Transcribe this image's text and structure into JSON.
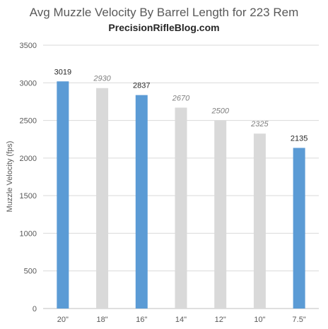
{
  "chart_data": {
    "type": "bar",
    "title": "Avg Muzzle Velocity By Barrel Length for 223 Rem",
    "subtitle": "PrecisionRifleBlog.com",
    "xlabel": "",
    "ylabel": "Muzzle Velocity (fps)",
    "categories": [
      "20\"",
      "18\"",
      "16\"",
      "14\"",
      "12\"",
      "10\"",
      "7.5\""
    ],
    "values": [
      3019,
      2930,
      2837,
      2670,
      2500,
      2325,
      2135
    ],
    "data_labels": [
      "3019",
      "2930",
      "2837",
      "2670",
      "2500",
      "2325",
      "2135"
    ],
    "label_style": [
      "normal",
      "italic",
      "normal",
      "italic",
      "italic",
      "italic",
      "normal"
    ],
    "bar_colors": [
      "#5b9bd5",
      "#d9d9d9",
      "#5b9bd5",
      "#d9d9d9",
      "#d9d9d9",
      "#d9d9d9",
      "#5b9bd5"
    ],
    "ylim": [
      0,
      3500
    ],
    "yticks": [
      0,
      500,
      1000,
      1500,
      2000,
      2500,
      3000,
      3500
    ],
    "grid": true,
    "gridline_color": "#d9d9d9",
    "label_colors": {
      "normal": "#262626",
      "italic": "#7f7f7f"
    }
  }
}
